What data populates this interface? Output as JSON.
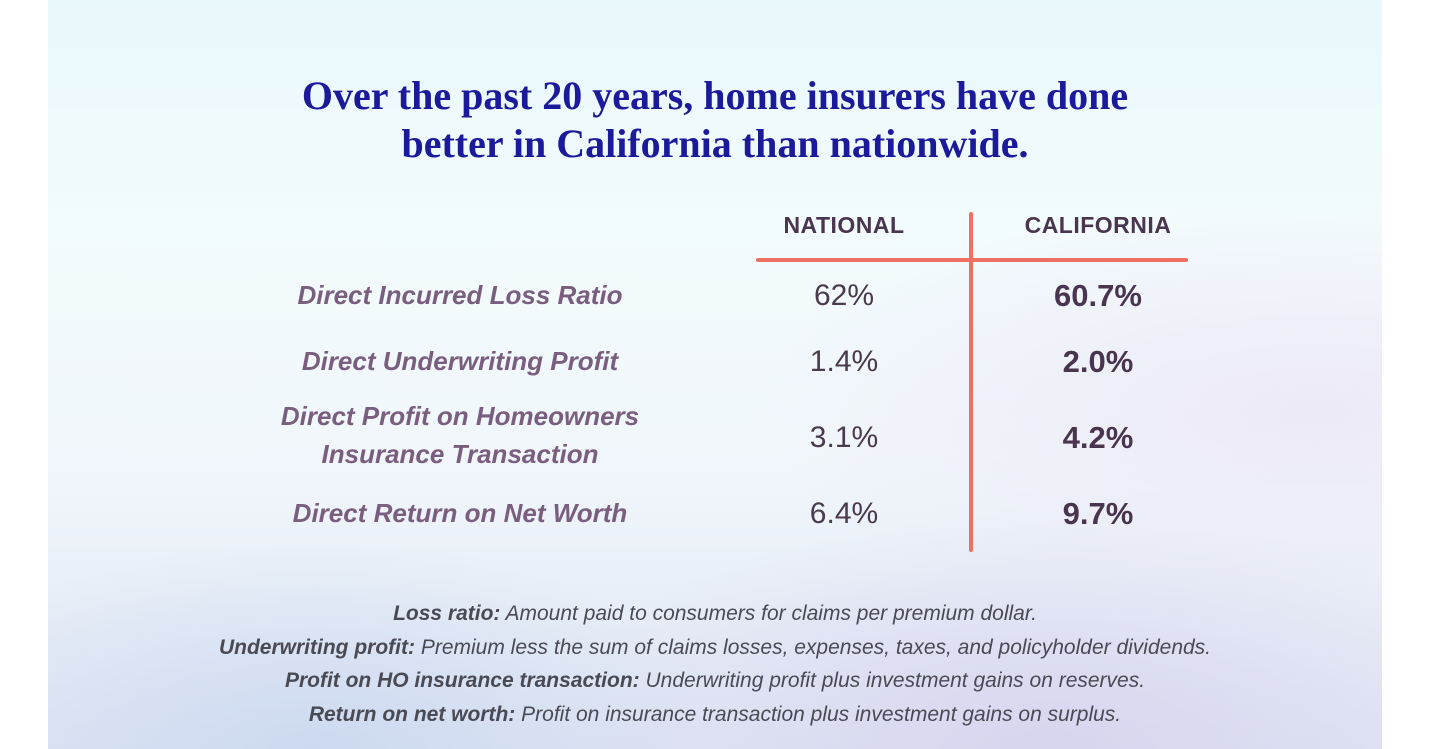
{
  "title": {
    "line1": "Over the past 20 years, home insurers have done",
    "line2": "better in California than nationwide."
  },
  "chart_data": {
    "type": "table",
    "columns": [
      "NATIONAL",
      "CALIFORNIA"
    ],
    "rows": [
      {
        "label": "Direct Incurred Loss Ratio",
        "national": "62%",
        "california": "60.7%"
      },
      {
        "label": "Direct Underwriting Profit",
        "national": "1.4%",
        "california": "2.0%"
      },
      {
        "label_line1": "Direct Profit on Homeowners",
        "label_line2": "Insurance Transaction",
        "national": "3.1%",
        "california": "4.2%"
      },
      {
        "label": "Direct Return on Net Worth",
        "national": "6.4%",
        "california": "9.7%"
      }
    ]
  },
  "notes": [
    {
      "term": "Loss ratio:",
      "definition": "Amount paid to consumers for claims per premium dollar."
    },
    {
      "term": "Underwriting profit:",
      "definition": "Premium less the sum of claims losses, expenses, taxes, and policyholder dividends."
    },
    {
      "term": "Profit on HO insurance transaction:",
      "definition": "Underwriting profit plus investment gains on reserves."
    },
    {
      "term": "Return on net worth:",
      "definition": "Profit on insurance transaction plus investment gains on surplus."
    }
  ],
  "colors": {
    "title": "#1a1a9a",
    "row_label": "#7a5e80",
    "divider": "#ef6f62",
    "value": "#4a3550"
  }
}
